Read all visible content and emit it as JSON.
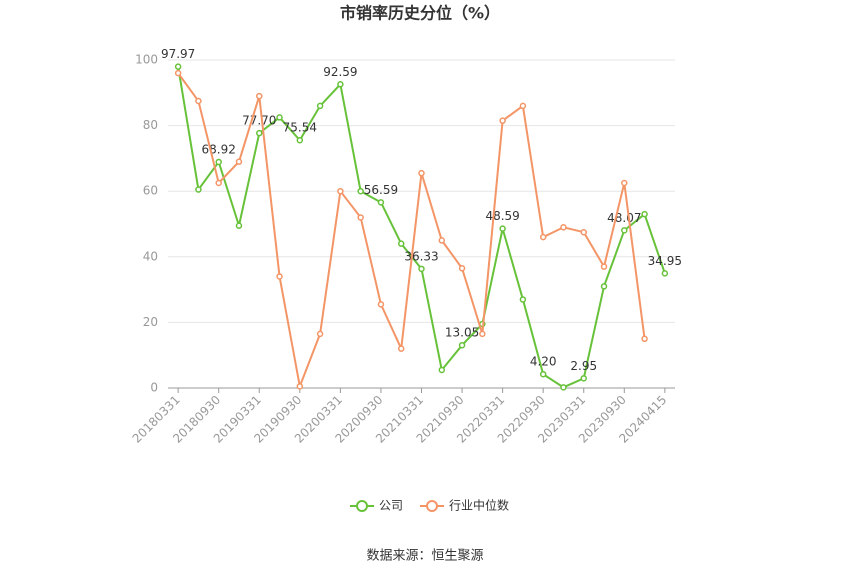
{
  "chart_data": {
    "type": "line",
    "title": "市销率历史分位（%）",
    "categories": [
      "20180331",
      null,
      "20180930",
      null,
      "20190331",
      null,
      "20190930",
      null,
      "20200331",
      null,
      "20200930",
      null,
      "20210331",
      null,
      "20210930",
      null,
      "20220331",
      null,
      "20220930",
      null,
      "20230331",
      null,
      "20230930",
      null,
      "20240415"
    ],
    "series": [
      {
        "name": "公司",
        "color": "#67c23a",
        "values": [
          97.97,
          60.5,
          68.92,
          49.5,
          77.7,
          82.5,
          75.54,
          86,
          92.59,
          60,
          56.59,
          44,
          36.33,
          5.5,
          13.05,
          19.5,
          48.59,
          27,
          4.2,
          0.2,
          2.95,
          31,
          48.07,
          53,
          34.95
        ],
        "value_labels": [
          "97.97",
          null,
          "68.92",
          null,
          "77.70",
          null,
          "75.54",
          null,
          "92.59",
          null,
          "56.59",
          null,
          "36.33",
          null,
          "13.05",
          null,
          "48.59",
          null,
          "4.20",
          null,
          "2.95",
          null,
          "48.07",
          null,
          "34.95"
        ]
      },
      {
        "name": "行业中位数",
        "color": "#f39566",
        "values": [
          96,
          87.5,
          62.5,
          69,
          89,
          34,
          0.5,
          16.5,
          60,
          52,
          25.5,
          12,
          65.5,
          45,
          36.5,
          16.5,
          81.5,
          86,
          46,
          49,
          47.5,
          37,
          62.5,
          15,
          null
        ]
      }
    ],
    "ylim": [
      0,
      100
    ],
    "yticks": [
      0,
      20,
      40,
      60,
      80,
      100
    ],
    "grid": true,
    "source": "数据来源：恒生聚源"
  }
}
